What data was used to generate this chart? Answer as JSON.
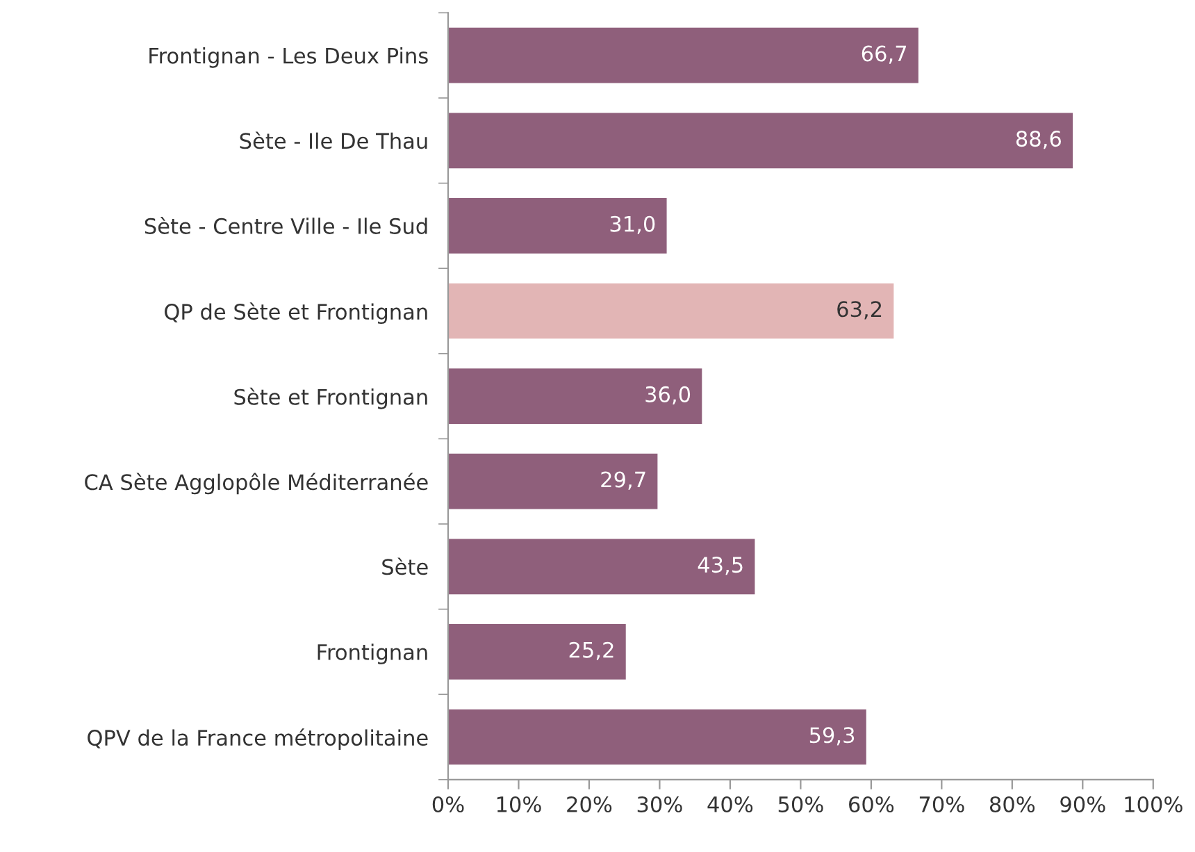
{
  "chart_data": {
    "type": "bar",
    "orientation": "horizontal",
    "categories": [
      "Frontignan - Les Deux Pins",
      "Sète - Ile De Thau",
      "Sète - Centre Ville - Ile Sud",
      "QP de Sète et Frontignan",
      "Sète et Frontignan",
      "CA Sète Agglopôle Méditerranée",
      "Sète",
      "Frontignan",
      "QPV de la France métropolitaine"
    ],
    "values": [
      66.7,
      88.6,
      31.0,
      63.2,
      36.0,
      29.7,
      43.5,
      25.2,
      59.3
    ],
    "value_labels": [
      "66,7",
      "88,6",
      "31,0",
      "63,2",
      "36,0",
      "29,7",
      "43,5",
      "25,2",
      "59,3"
    ],
    "colors": [
      "#8f5f7b",
      "#8f5f7b",
      "#8f5f7b",
      "#e2b5b5",
      "#8f5f7b",
      "#8f5f7b",
      "#8f5f7b",
      "#8f5f7b",
      "#8f5f7b"
    ],
    "xlim": [
      0,
      100
    ],
    "xticks": [
      {
        "value": 0,
        "label": "0%"
      },
      {
        "value": 10,
        "label": "10%"
      },
      {
        "value": 20,
        "label": "20%"
      },
      {
        "value": 30,
        "label": "30%"
      },
      {
        "value": 40,
        "label": "40%"
      },
      {
        "value": 50,
        "label": "50%"
      },
      {
        "value": 60,
        "label": "60%"
      },
      {
        "value": 70,
        "label": "70%"
      },
      {
        "value": 80,
        "label": "80%"
      },
      {
        "value": 90,
        "label": "90%"
      },
      {
        "value": 100,
        "label": "100%"
      }
    ],
    "grid": false
  }
}
